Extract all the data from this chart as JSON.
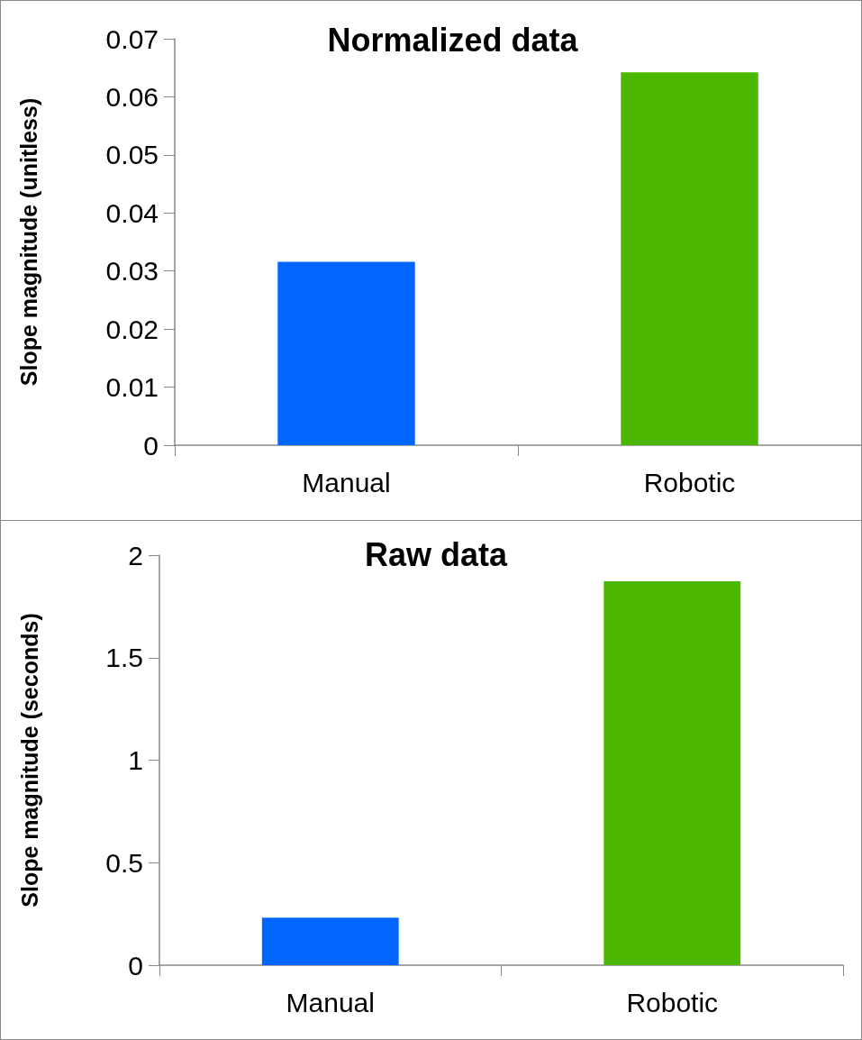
{
  "chart_data": [
    {
      "type": "bar",
      "title": "Normalized data",
      "ylabel": "Slope magnitude (unitless)",
      "categories": [
        "Manual",
        "Robotic"
      ],
      "values": [
        0.0316,
        0.0642
      ],
      "colors": [
        "#0066ff",
        "#4bb700"
      ],
      "ylim": [
        0,
        0.07
      ],
      "yticks": [
        0,
        0.01,
        0.02,
        0.03,
        0.04,
        0.05,
        0.06,
        0.07
      ]
    },
    {
      "type": "bar",
      "title": "Raw data",
      "ylabel": "Slope magnitude (seconds)",
      "categories": [
        "Manual",
        "Robotic"
      ],
      "values": [
        0.232,
        1.873
      ],
      "colors": [
        "#0066ff",
        "#4bb700"
      ],
      "ylim": [
        0,
        2
      ],
      "yticks": [
        0,
        0.5,
        1,
        1.5,
        2
      ]
    }
  ]
}
